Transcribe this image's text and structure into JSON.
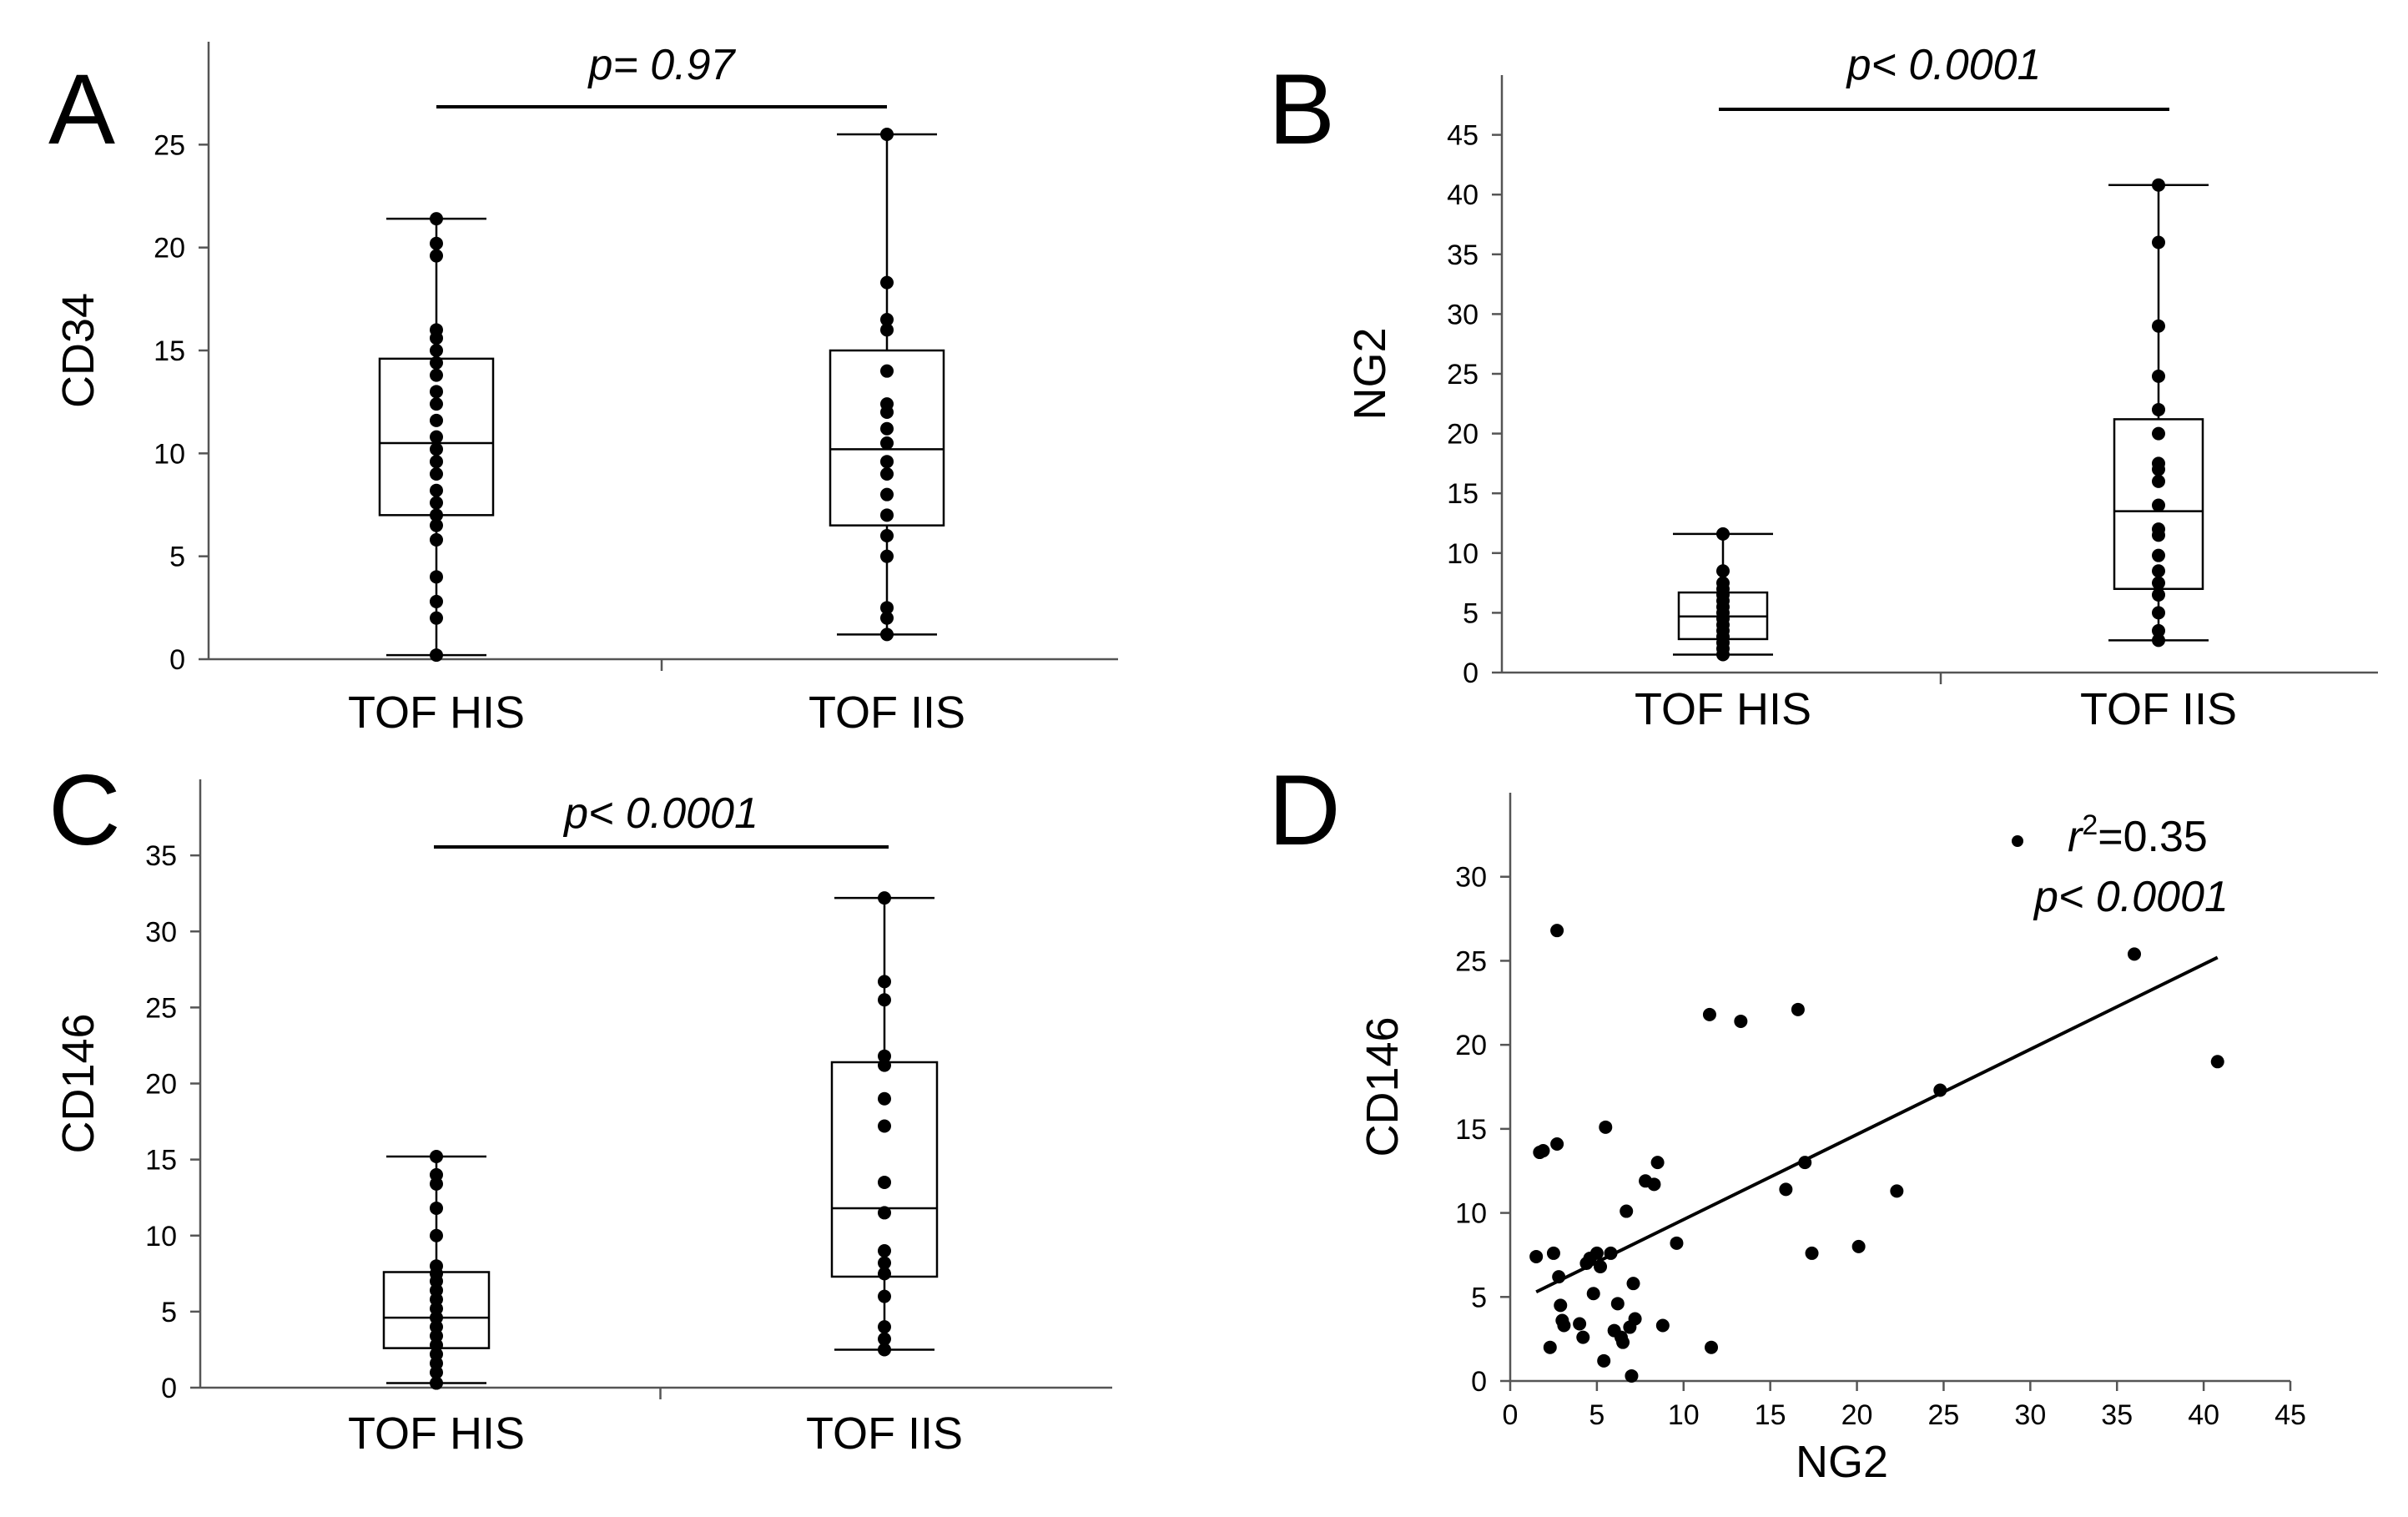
{
  "chart_data": [
    {
      "panel": "A",
      "type": "box",
      "ylabel": "CD34",
      "ylim": [
        0,
        30
      ],
      "yticks": [
        0,
        5,
        10,
        15,
        20,
        25
      ],
      "categories": [
        "TOF HIS",
        "TOF IIS"
      ],
      "pvalue_text": "p= 0.97",
      "boxes": [
        {
          "category": "TOF HIS",
          "min": 0.2,
          "q1": 7.0,
          "median": 10.5,
          "q3": 14.6,
          "max": 21.4,
          "points": [
            0.2,
            2.0,
            2.8,
            4.0,
            5.8,
            6.5,
            7.0,
            7.6,
            8.2,
            9.0,
            9.6,
            10.2,
            10.8,
            11.6,
            12.4,
            13.0,
            13.8,
            14.4,
            15.0,
            15.6,
            16.0,
            19.6,
            20.2,
            21.4
          ]
        },
        {
          "category": "TOF IIS",
          "min": 1.2,
          "q1": 6.5,
          "median": 10.2,
          "q3": 15.0,
          "max": 25.5,
          "points": [
            1.2,
            2.0,
            2.5,
            5.0,
            6.0,
            7.0,
            8.0,
            9.0,
            9.6,
            10.5,
            11.2,
            12.0,
            12.4,
            14.0,
            16.0,
            16.5,
            18.3,
            25.5
          ]
        }
      ]
    },
    {
      "panel": "B",
      "type": "box",
      "ylabel": "NG2",
      "ylim": [
        0,
        50
      ],
      "yticks": [
        0,
        5,
        10,
        15,
        20,
        25,
        30,
        35,
        40,
        45
      ],
      "categories": [
        "TOF HIS",
        "TOF IIS"
      ],
      "pvalue_text": "p< 0.0001",
      "boxes": [
        {
          "category": "TOF HIS",
          "min": 1.5,
          "q1": 2.8,
          "median": 4.7,
          "q3": 6.7,
          "max": 11.6,
          "points": [
            1.5,
            2.0,
            2.5,
            3.0,
            3.5,
            4.0,
            4.5,
            5.0,
            5.5,
            6.0,
            6.5,
            7.0,
            7.5,
            8.5,
            11.6
          ]
        },
        {
          "category": "TOF IIS",
          "min": 2.7,
          "q1": 7.0,
          "median": 13.5,
          "q3": 21.2,
          "max": 40.8,
          "points": [
            2.7,
            3.5,
            5.0,
            6.5,
            7.5,
            8.5,
            9.8,
            11.5,
            12.0,
            14.0,
            16.0,
            17.0,
            17.5,
            20.0,
            22.0,
            24.8,
            29.0,
            36.0,
            40.8
          ]
        }
      ]
    },
    {
      "panel": "C",
      "type": "box",
      "ylabel": "CD146",
      "ylim": [
        0,
        40
      ],
      "yticks": [
        0,
        5,
        10,
        15,
        20,
        25,
        30,
        35
      ],
      "categories": [
        "TOF HIS",
        "TOF IIS"
      ],
      "pvalue_text": "p< 0.0001",
      "boxes": [
        {
          "category": "TOF HIS",
          "min": 0.3,
          "q1": 2.6,
          "median": 4.6,
          "q3": 7.6,
          "max": 15.2,
          "points": [
            0.3,
            1.0,
            1.6,
            2.2,
            2.8,
            3.4,
            4.0,
            4.6,
            5.2,
            5.8,
            6.4,
            7.0,
            7.5,
            8.0,
            10.0,
            11.8,
            13.4,
            14.0,
            15.2
          ]
        },
        {
          "category": "TOF IIS",
          "min": 2.5,
          "q1": 7.3,
          "median": 11.8,
          "q3": 21.4,
          "max": 32.2,
          "points": [
            2.5,
            3.2,
            4.0,
            6.0,
            7.5,
            8.2,
            9.0,
            11.5,
            13.5,
            17.2,
            19.0,
            21.2,
            21.8,
            25.5,
            26.7,
            32.2
          ]
        }
      ]
    },
    {
      "panel": "D",
      "type": "scatter",
      "xlabel": "NG2",
      "ylabel": "CD146",
      "xlim": [
        0,
        45
      ],
      "ylim": [
        0,
        35
      ],
      "xticks": [
        0,
        5,
        10,
        15,
        20,
        25,
        30,
        35,
        40,
        45
      ],
      "yticks": [
        0,
        5,
        10,
        15,
        20,
        25,
        30
      ],
      "r2_prefix": "r",
      "r2_sup": "2",
      "r2_suffix": "=0.35",
      "pvalue_text": "p< 0.0001",
      "fit": {
        "x0": 1.5,
        "y0": 5.3,
        "x1": 40.8,
        "y1": 25.2
      },
      "points": [
        [
          1.5,
          7.4
        ],
        [
          1.7,
          13.6
        ],
        [
          1.9,
          13.7
        ],
        [
          2.3,
          2.0
        ],
        [
          2.5,
          7.6
        ],
        [
          2.7,
          14.1
        ],
        [
          2.7,
          26.8
        ],
        [
          2.8,
          6.2
        ],
        [
          2.9,
          4.5
        ],
        [
          3.0,
          3.6
        ],
        [
          3.1,
          3.3
        ],
        [
          4.0,
          3.4
        ],
        [
          4.2,
          2.6
        ],
        [
          4.4,
          7.0
        ],
        [
          4.6,
          7.3
        ],
        [
          4.8,
          5.2
        ],
        [
          5.0,
          7.6
        ],
        [
          5.2,
          6.8
        ],
        [
          5.4,
          1.2
        ],
        [
          5.5,
          15.1
        ],
        [
          5.8,
          7.6
        ],
        [
          6.0,
          3.0
        ],
        [
          6.2,
          4.6
        ],
        [
          6.4,
          2.6
        ],
        [
          6.5,
          2.3
        ],
        [
          6.7,
          10.1
        ],
        [
          6.9,
          3.2
        ],
        [
          7.0,
          0.3
        ],
        [
          7.1,
          5.8
        ],
        [
          7.2,
          3.7
        ],
        [
          7.8,
          11.9
        ],
        [
          8.3,
          11.7
        ],
        [
          8.5,
          13.0
        ],
        [
          8.8,
          3.3
        ],
        [
          9.6,
          8.2
        ],
        [
          11.5,
          21.8
        ],
        [
          11.6,
          2.0
        ],
        [
          13.3,
          21.4
        ],
        [
          15.9,
          11.4
        ],
        [
          16.6,
          22.1
        ],
        [
          17.0,
          13.0
        ],
        [
          17.4,
          7.6
        ],
        [
          20.1,
          8.0
        ],
        [
          22.3,
          11.3
        ],
        [
          24.8,
          17.3
        ],
        [
          36.0,
          25.4
        ],
        [
          40.8,
          19.0
        ]
      ]
    }
  ]
}
